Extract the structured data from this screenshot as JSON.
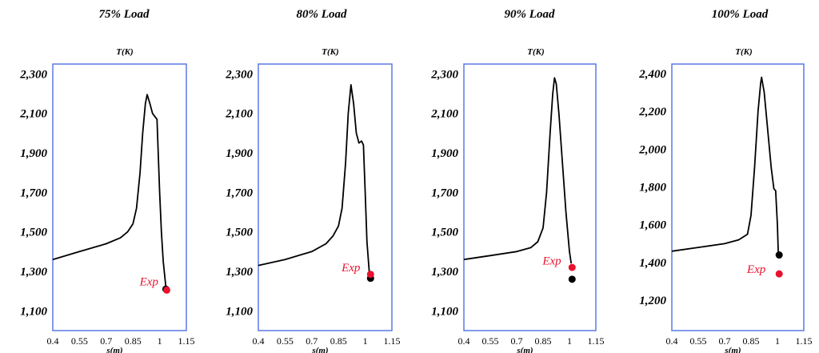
{
  "chart_data": [
    {
      "type": "line",
      "title": "75% Load",
      "ylabel": "T(K)",
      "xlabel": "s(m)",
      "xlim": [
        0.4,
        1.15
      ],
      "ylim": [
        1000,
        2350
      ],
      "xticks": [
        0.4,
        0.55,
        0.7,
        0.85,
        1,
        1.15
      ],
      "xtick_labels": [
        "0.4",
        "0.55",
        "0.7",
        "0.85",
        "1",
        "1.15"
      ],
      "yticks": [
        1100,
        1300,
        1500,
        1700,
        1900,
        2100,
        2300
      ],
      "ytick_labels": [
        "1,100",
        "1,300",
        "1,500",
        "1,700",
        "1,900",
        "2,100",
        "2,300"
      ],
      "series": [
        {
          "color": "#000000",
          "points": [
            [
              0.4,
              1360
            ],
            [
              0.55,
              1400
            ],
            [
              0.7,
              1440
            ],
            [
              0.78,
              1470
            ],
            [
              0.82,
              1500
            ],
            [
              0.85,
              1540
            ],
            [
              0.87,
              1620
            ],
            [
              0.89,
              1800
            ],
            [
              0.905,
              2000
            ],
            [
              0.92,
              2150
            ],
            [
              0.93,
              2195
            ],
            [
              0.945,
              2150
            ],
            [
              0.96,
              2100
            ],
            [
              0.985,
              2070
            ],
            [
              1.0,
              1700
            ],
            [
              1.01,
              1500
            ],
            [
              1.02,
              1350
            ],
            [
              1.035,
              1220
            ]
          ]
        }
      ],
      "markers": [
        {
          "x": 1.035,
          "y": 1210,
          "color": "#000000"
        },
        {
          "x": 1.04,
          "y": 1205,
          "color": "#e8122e"
        }
      ],
      "annotation": {
        "text": "Exp",
        "x": 0.94,
        "y": 1230,
        "color": "#e8122e"
      }
    },
    {
      "type": "line",
      "title": "80% Load",
      "ylabel": "T(K)",
      "xlabel": "s(m)",
      "xlim": [
        0.4,
        1.15
      ],
      "ylim": [
        1000,
        2350
      ],
      "xticks": [
        0.4,
        0.55,
        0.7,
        0.85,
        1,
        1.15
      ],
      "xtick_labels": [
        "0.4",
        "0.55",
        "0.7",
        "0.85",
        "1",
        "1.15"
      ],
      "yticks": [
        1100,
        1300,
        1500,
        1700,
        1900,
        2100,
        2300
      ],
      "ytick_labels": [
        "1,100",
        "1,300",
        "1,500",
        "1,700",
        "1,900",
        "2,100",
        "2,300"
      ],
      "series": [
        {
          "color": "#000000",
          "points": [
            [
              0.4,
              1330
            ],
            [
              0.55,
              1360
            ],
            [
              0.7,
              1400
            ],
            [
              0.78,
              1440
            ],
            [
              0.82,
              1480
            ],
            [
              0.85,
              1530
            ],
            [
              0.87,
              1620
            ],
            [
              0.89,
              1850
            ],
            [
              0.905,
              2100
            ],
            [
              0.92,
              2245
            ],
            [
              0.935,
              2150
            ],
            [
              0.95,
              2000
            ],
            [
              0.965,
              1950
            ],
            [
              0.98,
              1960
            ],
            [
              0.99,
              1940
            ],
            [
              1.0,
              1700
            ],
            [
              1.01,
              1450
            ],
            [
              1.025,
              1270
            ]
          ]
        }
      ],
      "markers": [
        {
          "x": 1.03,
          "y": 1265,
          "color": "#000000"
        },
        {
          "x": 1.03,
          "y": 1285,
          "color": "#e8122e"
        }
      ],
      "annotation": {
        "text": "Exp",
        "x": 0.92,
        "y": 1300,
        "color": "#e8122e"
      }
    },
    {
      "type": "line",
      "title": "90% Load",
      "ylabel": "T(K)",
      "xlabel": "s(m)",
      "xlim": [
        0.4,
        1.15
      ],
      "ylim": [
        1000,
        2350
      ],
      "xticks": [
        0.4,
        0.55,
        0.7,
        0.85,
        1,
        1.15
      ],
      "xtick_labels": [
        "0.4",
        "0.55",
        "0.7",
        "0.85",
        "1",
        "1.15"
      ],
      "yticks": [
        1100,
        1300,
        1500,
        1700,
        1900,
        2100,
        2300
      ],
      "ytick_labels": [
        "1,100",
        "1,300",
        "1,500",
        "1,700",
        "1,900",
        "2,100",
        "2,300"
      ],
      "series": [
        {
          "color": "#000000",
          "points": [
            [
              0.4,
              1360
            ],
            [
              0.55,
              1380
            ],
            [
              0.7,
              1400
            ],
            [
              0.78,
              1420
            ],
            [
              0.82,
              1450
            ],
            [
              0.85,
              1520
            ],
            [
              0.87,
              1700
            ],
            [
              0.89,
              2000
            ],
            [
              0.905,
              2200
            ],
            [
              0.915,
              2280
            ],
            [
              0.925,
              2250
            ],
            [
              0.94,
              2100
            ],
            [
              0.96,
              1850
            ],
            [
              0.98,
              1600
            ],
            [
              1.0,
              1400
            ],
            [
              1.01,
              1340
            ]
          ]
        }
      ],
      "markers": [
        {
          "x": 1.015,
          "y": 1260,
          "color": "#000000"
        },
        {
          "x": 1.015,
          "y": 1320,
          "color": "#e8122e"
        }
      ],
      "annotation": {
        "text": "Exp",
        "x": 0.9,
        "y": 1335,
        "color": "#e8122e"
      }
    },
    {
      "type": "line",
      "title": "100% Load",
      "ylabel": "T(K)",
      "xlabel": "s(m)",
      "xlim": [
        0.4,
        1.15
      ],
      "ylim": [
        1040,
        2450
      ],
      "xticks": [
        0.4,
        0.55,
        0.7,
        0.85,
        1,
        1.15
      ],
      "xtick_labels": [
        "0.4",
        "0.55",
        "0.7",
        "0.85",
        "1",
        "1.15"
      ],
      "yticks": [
        1200,
        1400,
        1600,
        1800,
        2000,
        2200,
        2400
      ],
      "ytick_labels": [
        "1,200",
        "1,400",
        "1,600",
        "1,800",
        "2,000",
        "2,200",
        "2,400"
      ],
      "series": [
        {
          "color": "#000000",
          "points": [
            [
              0.4,
              1460
            ],
            [
              0.55,
              1480
            ],
            [
              0.7,
              1500
            ],
            [
              0.78,
              1520
            ],
            [
              0.83,
              1550
            ],
            [
              0.85,
              1650
            ],
            [
              0.87,
              1900
            ],
            [
              0.89,
              2200
            ],
            [
              0.905,
              2350
            ],
            [
              0.91,
              2380
            ],
            [
              0.925,
              2300
            ],
            [
              0.945,
              2100
            ],
            [
              0.965,
              1900
            ],
            [
              0.98,
              1790
            ],
            [
              0.99,
              1780
            ],
            [
              1.0,
              1600
            ],
            [
              1.005,
              1450
            ]
          ]
        }
      ],
      "markers": [
        {
          "x": 1.01,
          "y": 1440,
          "color": "#000000"
        },
        {
          "x": 1.01,
          "y": 1340,
          "color": "#e8122e"
        }
      ],
      "annotation": {
        "text": "Exp",
        "x": 0.88,
        "y": 1345,
        "color": "#e8122e"
      }
    }
  ]
}
